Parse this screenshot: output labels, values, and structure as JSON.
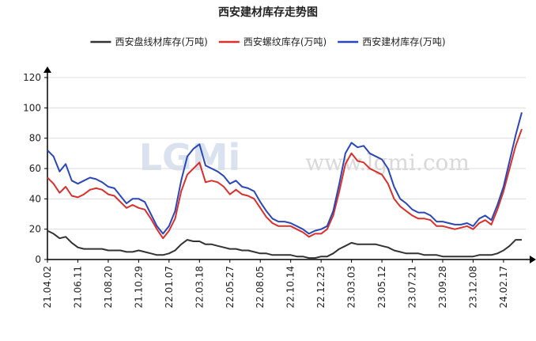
{
  "chart_data": {
    "type": "line",
    "title": "西安建材库存走势图",
    "watermark_logo": "LGMi",
    "watermark_url": "www.lgmi.com",
    "categories": [
      "21.04.02",
      null,
      null,
      null,
      null,
      "21.06.11",
      null,
      null,
      null,
      null,
      "21.08.20",
      null,
      null,
      null,
      null,
      "21.10.29",
      null,
      null,
      null,
      null,
      "22.01.07",
      null,
      null,
      null,
      null,
      "22.03.18",
      null,
      null,
      null,
      null,
      "22.05.27",
      null,
      null,
      null,
      null,
      "22.08.05",
      null,
      null,
      null,
      null,
      "22.10.14",
      null,
      null,
      null,
      null,
      "22.12.23",
      null,
      null,
      null,
      null,
      "23.03.03",
      null,
      null,
      null,
      null,
      "23.05.12",
      null,
      null,
      null,
      null,
      "23.07.21",
      null,
      null,
      null,
      null,
      "23.09.28",
      null,
      null,
      null,
      null,
      "23.12.08",
      null,
      null,
      null,
      null,
      "24.02.17",
      null,
      null,
      null
    ],
    "series": [
      {
        "name": "西安盘线材库存(万吨)",
        "color": "#333333",
        "values": [
          19,
          17,
          14,
          15,
          11,
          8,
          7,
          7,
          7,
          7,
          6,
          6,
          6,
          5,
          5,
          6,
          5,
          4,
          3,
          3,
          4,
          6,
          10,
          13,
          12,
          12,
          10,
          10,
          9,
          8,
          7,
          7,
          6,
          6,
          5,
          4,
          4,
          3,
          3,
          3,
          3,
          2,
          2,
          1,
          1,
          2,
          2,
          4,
          7,
          9,
          11,
          10,
          10,
          10,
          10,
          9,
          8,
          6,
          5,
          4,
          4,
          4,
          3,
          3,
          3,
          2,
          2,
          2,
          2,
          2,
          2,
          3,
          3,
          3,
          4,
          6,
          9,
          13,
          13
        ]
      },
      {
        "name": "西安螺纹库存(万吨)",
        "color": "#d9302c",
        "values": [
          54,
          50,
          44,
          48,
          42,
          41,
          43,
          46,
          47,
          46,
          43,
          42,
          38,
          34,
          36,
          34,
          33,
          27,
          20,
          14,
          19,
          27,
          45,
          56,
          60,
          64,
          51,
          52,
          51,
          48,
          43,
          46,
          43,
          42,
          40,
          34,
          28,
          24,
          22,
          22,
          22,
          20,
          18,
          15,
          17,
          17,
          20,
          29,
          45,
          63,
          70,
          65,
          64,
          60,
          58,
          56,
          50,
          40,
          35,
          32,
          29,
          27,
          27,
          26,
          22,
          22,
          21,
          20,
          21,
          22,
          20,
          24,
          26,
          23,
          33,
          45,
          60,
          75,
          86
        ]
      },
      {
        "name": "西安建材库存(万吨)",
        "color": "#2a47b8",
        "values": [
          72,
          68,
          58,
          63,
          52,
          50,
          52,
          54,
          53,
          51,
          48,
          47,
          42,
          37,
          40,
          40,
          38,
          30,
          22,
          17,
          22,
          32,
          52,
          68,
          73,
          76,
          62,
          60,
          58,
          55,
          50,
          52,
          48,
          47,
          45,
          38,
          32,
          27,
          25,
          25,
          24,
          22,
          20,
          17,
          19,
          20,
          22,
          32,
          50,
          70,
          77,
          74,
          75,
          70,
          68,
          66,
          60,
          48,
          40,
          37,
          33,
          31,
          31,
          29,
          25,
          25,
          24,
          23,
          23,
          24,
          22,
          27,
          29,
          26,
          36,
          48,
          65,
          82,
          97
        ]
      }
    ],
    "ylim": [
      0,
      120
    ],
    "yticks": [
      0,
      20,
      40,
      60,
      80,
      100,
      120
    ],
    "grid": true
  }
}
